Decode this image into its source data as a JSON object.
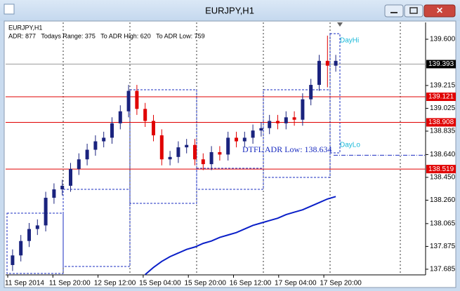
{
  "window": {
    "title": "EURJPY,H1"
  },
  "chart_data": {
    "type": "candlestick",
    "symbol_label": "EURJPY,H1",
    "info": "ADR: 877   Todays Range: 375   To ADR High: 620   To ADR Low: 759",
    "x_labels": [
      "11 Sep 2014",
      "11 Sep 20:00",
      "12 Sep 12:00",
      "15 Sep 04:00",
      "15 Sep 20:00",
      "16 Sep 12:00",
      "17 Sep 04:00",
      "17 Sep 20:00"
    ],
    "ylim": [
      137.638,
      139.74
    ],
    "yticks": [
      {
        "value": 139.6,
        "label": "139.600"
      },
      {
        "value": 139.215,
        "label": "139.215"
      },
      {
        "value": 139.025,
        "label": "139.025"
      },
      {
        "value": 138.835,
        "label": "138.835"
      },
      {
        "value": 138.64,
        "label": "138.640"
      },
      {
        "value": 138.45,
        "label": "138.450"
      },
      {
        "value": 138.26,
        "label": "138.260"
      },
      {
        "value": 138.065,
        "label": "138.065"
      },
      {
        "value": 137.875,
        "label": "137.875"
      },
      {
        "value": 137.685,
        "label": "137.685"
      }
    ],
    "open": [
      137.72,
      137.8,
      137.92,
      138.02,
      138.05,
      138.28,
      138.35,
      138.38,
      138.52,
      138.6,
      138.68,
      138.75,
      138.78,
      138.9,
      139.0,
      139.17,
      139.02,
      138.92,
      138.8,
      138.6,
      138.62,
      138.7,
      138.72,
      138.6,
      138.56,
      138.66,
      138.64,
      138.78,
      138.75,
      138.78,
      138.84,
      138.86,
      138.92,
      138.9,
      138.95,
      138.93,
      139.1,
      139.22,
      139.42,
      139.38
    ],
    "high": [
      137.85,
      137.97,
      138.07,
      138.1,
      138.33,
      138.4,
      138.43,
      138.57,
      138.65,
      138.73,
      138.8,
      138.83,
      138.95,
      139.05,
      139.22,
      139.22,
      139.07,
      138.97,
      138.85,
      138.67,
      138.75,
      138.77,
      138.77,
      138.65,
      138.71,
      138.71,
      138.83,
      138.83,
      138.83,
      138.89,
      138.91,
      138.97,
      138.97,
      139.0,
      139.0,
      139.15,
      139.27,
      139.47,
      139.63,
      139.47
    ],
    "low": [
      137.67,
      137.75,
      137.87,
      137.97,
      138.0,
      138.23,
      138.3,
      138.33,
      138.47,
      138.55,
      138.63,
      138.7,
      138.73,
      138.85,
      138.95,
      138.97,
      138.87,
      138.75,
      138.55,
      138.55,
      138.57,
      138.65,
      138.55,
      138.51,
      138.51,
      138.59,
      138.59,
      138.7,
      138.7,
      138.73,
      138.79,
      138.81,
      138.85,
      138.85,
      138.88,
      138.88,
      139.05,
      139.17,
      139.2,
      139.33
    ],
    "close": [
      137.8,
      137.92,
      138.02,
      138.05,
      138.28,
      138.35,
      138.38,
      138.52,
      138.6,
      138.68,
      138.75,
      138.78,
      138.9,
      139.0,
      139.17,
      139.02,
      138.92,
      138.8,
      138.6,
      138.62,
      138.7,
      138.72,
      138.6,
      138.56,
      138.66,
      138.64,
      138.78,
      138.75,
      138.78,
      138.84,
      138.86,
      138.92,
      138.9,
      138.95,
      138.93,
      139.1,
      139.22,
      139.42,
      139.38,
      139.42
    ],
    "up_color": "#1a237e",
    "down_color": "#e00000",
    "ma": {
      "color": "#0a1fc8",
      "values": [
        null,
        null,
        null,
        null,
        null,
        null,
        null,
        null,
        null,
        null,
        null,
        null,
        null,
        null,
        null,
        null,
        137.64,
        137.7,
        137.75,
        137.79,
        137.82,
        137.85,
        137.87,
        137.9,
        137.92,
        137.95,
        137.97,
        137.99,
        138.02,
        138.05,
        138.07,
        138.09,
        138.11,
        138.14,
        138.16,
        138.18,
        138.21,
        138.24,
        138.27,
        138.29
      ]
    },
    "current_price": 139.393,
    "levels": [
      139.121,
      138.908,
      138.519
    ],
    "level_color": "#e00000",
    "day_hi": "DayHi",
    "day_lo": "DayLo",
    "adr_low": {
      "label": "DTFL ADR Low: 138.634",
      "value": 138.634
    }
  }
}
